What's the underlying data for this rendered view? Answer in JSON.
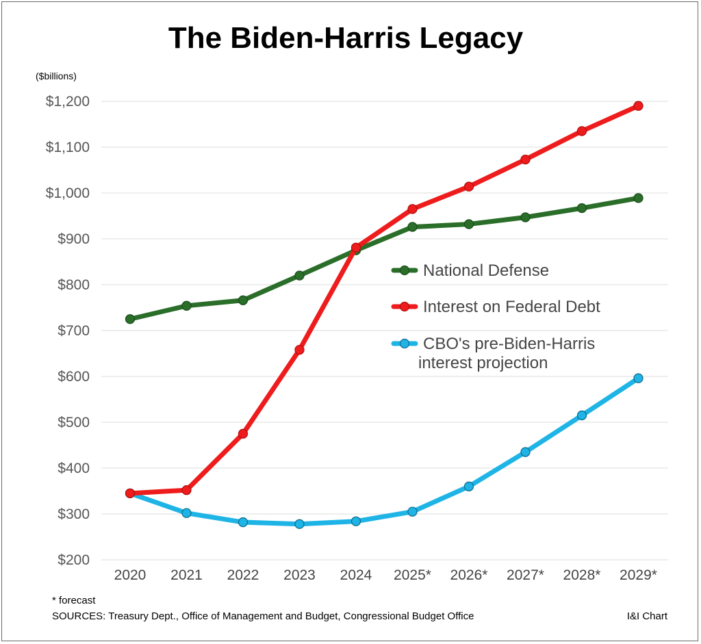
{
  "chart_data": {
    "type": "line",
    "title": "The Biden-Harris Legacy",
    "unit_label": "($billions)",
    "categories": [
      "2020",
      "2021",
      "2022",
      "2023",
      "2024",
      "2025*",
      "2026*",
      "2027*",
      "2028*",
      "2029*"
    ],
    "ylim": [
      200,
      1200
    ],
    "yticks": [
      200,
      300,
      400,
      500,
      600,
      700,
      800,
      900,
      1000,
      1100,
      1200
    ],
    "ytick_labels": [
      "$200",
      "$300",
      "$400",
      "$500",
      "$600",
      "$700",
      "$800",
      "$900",
      "$1,000",
      "$1,100",
      "$1,200"
    ],
    "grid": true,
    "legend_position": "center-right",
    "series": [
      {
        "name": "National Defense",
        "color": "#2a6e2a",
        "values": [
          725,
          754,
          766,
          820,
          875,
          926,
          932,
          947,
          967,
          989
        ]
      },
      {
        "name": "Interest on Federal Debt",
        "color": "#ee1c1c",
        "values": [
          345,
          352,
          475,
          658,
          881,
          965,
          1014,
          1073,
          1135,
          1190
        ]
      },
      {
        "name": "CBO's pre-Biden-Harris interest  projection",
        "legend_lines": [
          "CBO's pre-Biden-Harris",
          "interest  projection"
        ],
        "color": "#1eb4e6",
        "values": [
          345,
          302,
          282,
          278,
          284,
          305,
          360,
          435,
          515,
          596
        ]
      }
    ]
  },
  "footer": {
    "note": "* forecast",
    "sources": "SOURCES: Treasury Dept., Office of Management and Budget, Congressional Budget Office",
    "credit": "I&I Chart"
  }
}
